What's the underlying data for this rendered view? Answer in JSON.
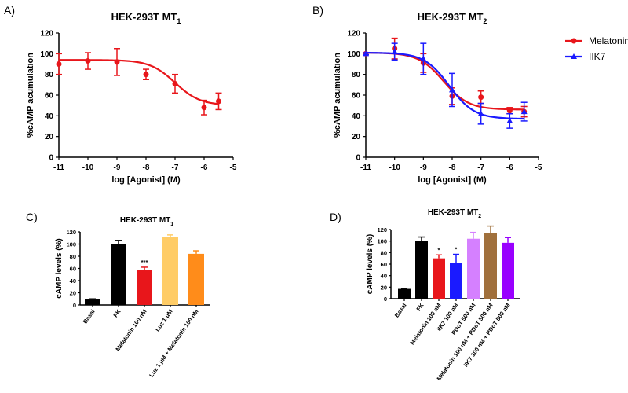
{
  "colors": {
    "melatonin": "#e8161b",
    "iik7": "#1a1aff",
    "basal": "#000000",
    "fk": "#000000",
    "luz": "#ffcc66",
    "luz_mel": "#ff8c1a",
    "pdot": "#d580ff",
    "mel_pdot": "#a0703c",
    "iik7_pdot": "#9900ff"
  },
  "chart_data": [
    {
      "id": "A",
      "panel_label": "A)",
      "type": "line",
      "title_main": "HEK-293T MT",
      "title_sub": "1",
      "xlabel": "log [Agonist]  (M)",
      "ylabel": "%cAMP acumulation",
      "xlim": [
        -11,
        -5
      ],
      "ylim": [
        0,
        120
      ],
      "xticks": [
        -11,
        -10,
        -9,
        -8,
        -7,
        -6,
        -5
      ],
      "yticks": [
        0,
        20,
        40,
        60,
        80,
        100,
        120
      ],
      "series": [
        {
          "key": "melatonin",
          "marker": "circle",
          "x": [
            -11,
            -10,
            -9,
            -8,
            -7,
            -6,
            -5.5
          ],
          "y": [
            90,
            93,
            92,
            80,
            71,
            48,
            54
          ],
          "err": [
            10,
            8,
            13,
            5,
            9,
            7,
            8
          ],
          "fit": {
            "top": 94,
            "bottom": 50,
            "logec50": -7.0,
            "hill": 1.0
          }
        }
      ]
    },
    {
      "id": "B",
      "panel_label": "B)",
      "type": "line",
      "title_main": "HEK-293T MT",
      "title_sub": "2",
      "xlabel": "log [Agonist]  (M)",
      "ylabel": "%cAMP acumulation",
      "xlim": [
        -11,
        -5
      ],
      "ylim": [
        0,
        120
      ],
      "xticks": [
        -11,
        -10,
        -9,
        -8,
        -7,
        -6,
        -5
      ],
      "yticks": [
        0,
        20,
        40,
        60,
        80,
        100,
        120
      ],
      "legend": {
        "placement": "top-right",
        "entries": [
          "Melatonin",
          "IIK7"
        ]
      },
      "series": [
        {
          "key": "melatonin",
          "name": "Melatonin",
          "marker": "circle",
          "x": [
            -11,
            -10,
            -9,
            -8,
            -7,
            -6,
            -5.5
          ],
          "y": [
            100,
            105,
            91,
            59,
            58,
            45,
            44
          ],
          "err": [
            1,
            10,
            9,
            8,
            6,
            3,
            5
          ],
          "fit": {
            "top": 101,
            "bottom": 46,
            "logec50": -8.3,
            "hill": 1.0
          }
        },
        {
          "key": "iik7",
          "name": "IIK7",
          "marker": "triangle",
          "x": [
            -11,
            -10,
            -9,
            -8,
            -7,
            -6,
            -5.5
          ],
          "y": [
            100,
            102,
            95,
            65,
            42,
            35,
            44
          ],
          "err": [
            1,
            8,
            15,
            16,
            10,
            7,
            9
          ],
          "fit": {
            "top": 101,
            "bottom": 37,
            "logec50": -8.1,
            "hill": 1.0
          }
        }
      ]
    },
    {
      "id": "C",
      "panel_label": "C)",
      "type": "bar",
      "title_main": "HEK-293T MT",
      "title_sub": "1",
      "ylabel": "cAMP levels (%)",
      "ylim": [
        0,
        120
      ],
      "yticks": [
        0,
        20,
        40,
        60,
        80,
        100,
        120
      ],
      "categories": [
        "Basal",
        "FK",
        "Melatonin 100 nM",
        "Luz 1 μM",
        "Luz 1 μM + Melatonin 100 nM"
      ],
      "values": [
        9,
        100,
        57,
        111,
        84
      ],
      "errors": [
        1,
        6,
        5,
        4,
        5
      ],
      "color_keys": [
        "basal",
        "fk",
        "melatonin",
        "luz",
        "luz_mel"
      ],
      "annotations": [
        "",
        "",
        "***",
        "",
        ""
      ]
    },
    {
      "id": "D",
      "panel_label": "D)",
      "type": "bar",
      "title_main": "HEK-293T MT",
      "title_sub": "2",
      "ylabel": "cAMP levels (%)",
      "ylim": [
        0,
        120
      ],
      "yticks": [
        0,
        20,
        40,
        60,
        80,
        100,
        120
      ],
      "categories": [
        "Basal",
        "FK",
        "Melatonin 100 nM",
        "IIK7 100 nM",
        "PDoT 500 nM",
        "Melatonin 100 nM + PDoT 500 nM",
        "IIK7 100 nM + PDoT 500 nM"
      ],
      "values": [
        17,
        100,
        70,
        62,
        104,
        114,
        97
      ],
      "errors": [
        1,
        7,
        6,
        15,
        11,
        12,
        9
      ],
      "color_keys": [
        "basal",
        "fk",
        "melatonin",
        "iik7",
        "pdot",
        "mel_pdot",
        "iik7_pdot"
      ],
      "annotations": [
        "",
        "",
        "*",
        "*",
        "",
        "",
        ""
      ]
    }
  ]
}
